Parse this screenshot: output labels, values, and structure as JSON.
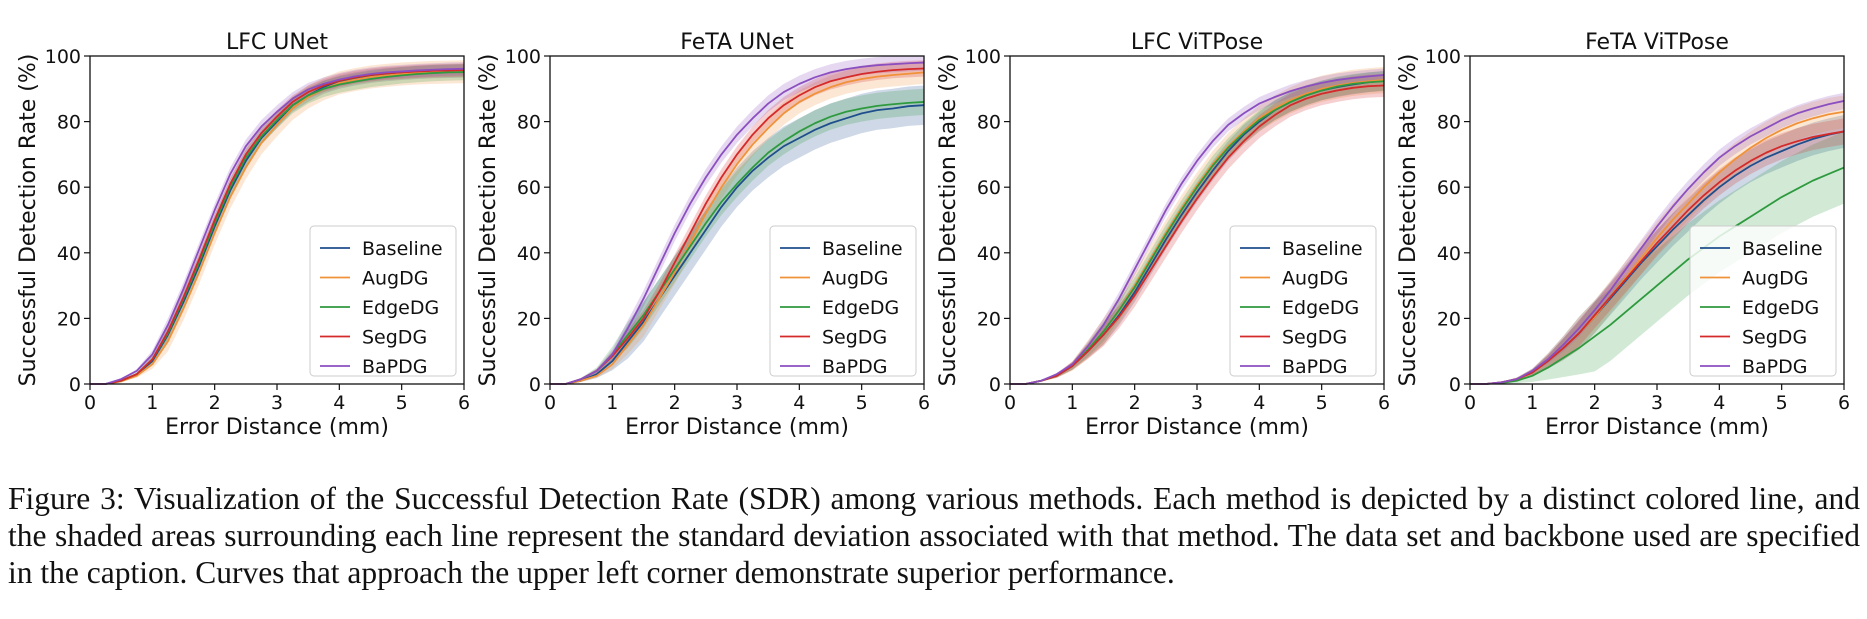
{
  "figure": {
    "caption": "Figure 3: Visualization of the Successful Detection Rate (SDR) among various methods. Each method is depicted by a distinct colored line, and the shaded areas surrounding each line represent the standard deviation associated with that method. The data set and backbone used are specified in the caption. Curves that approach the upper left corner demonstrate superior performance."
  },
  "legend": [
    "Baseline",
    "AugDG",
    "EdgeDG",
    "SegDG",
    "BaPDG"
  ],
  "colors": {
    "Baseline": "#1f4e8c",
    "AugDG": "#f0923a",
    "EdgeDG": "#2e9a3e",
    "SegDG": "#d42a2a",
    "BaPDG": "#8b4fc0"
  },
  "chart_data": [
    {
      "type": "line",
      "title": "LFC UNet",
      "xlabel": "Error Distance (mm)",
      "ylabel": "Successful Detection Rate (%)",
      "xlim": [
        0,
        6
      ],
      "ylim": [
        0,
        100
      ],
      "xticks": [
        0,
        1,
        2,
        3,
        4,
        5,
        6
      ],
      "yticks": [
        0,
        20,
        40,
        60,
        80,
        100
      ],
      "grid": false,
      "legend_position": "lower-right",
      "x": [
        0,
        0.25,
        0.5,
        0.75,
        1,
        1.25,
        1.5,
        1.75,
        2,
        2.25,
        2.5,
        2.75,
        3,
        3.25,
        3.5,
        3.75,
        4,
        4.25,
        4.5,
        4.75,
        5,
        5.25,
        5.5,
        5.75,
        6
      ],
      "series": [
        {
          "name": "Baseline",
          "values": [
            0,
            0,
            1,
            3,
            7,
            15,
            25,
            36,
            48,
            59,
            68,
            75,
            80,
            85,
            88,
            90.5,
            92,
            93,
            93.8,
            94.3,
            94.7,
            95,
            95.2,
            95.3,
            95.4
          ],
          "std": 2
        },
        {
          "name": "AugDG",
          "values": [
            0,
            0,
            0.8,
            2.5,
            6,
            13,
            23,
            34,
            46,
            57,
            66,
            73.5,
            79,
            84,
            87.5,
            90,
            91.8,
            92.8,
            93.6,
            94.1,
            94.5,
            94.8,
            95,
            95.1,
            95.2
          ],
          "std": 3.5
        },
        {
          "name": "EdgeDG",
          "values": [
            0,
            0,
            1,
            3,
            7.5,
            15.5,
            26,
            37,
            49,
            60,
            69,
            75.5,
            80.5,
            85,
            88,
            90,
            91.3,
            92.2,
            93,
            93.6,
            94.1,
            94.5,
            94.8,
            95,
            95.1
          ],
          "std": 2.5
        },
        {
          "name": "SegDG",
          "values": [
            0,
            0,
            1,
            3,
            7.5,
            16,
            26.5,
            38,
            50,
            61,
            70,
            76.5,
            81.5,
            86,
            89,
            91,
            92.5,
            93.5,
            94.2,
            94.7,
            95,
            95.3,
            95.5,
            95.6,
            95.7
          ],
          "std": 2
        },
        {
          "name": "BaPDG",
          "values": [
            0,
            0,
            1.5,
            4,
            9,
            18,
            29,
            41,
            53,
            64,
            72.5,
            78.5,
            83,
            87,
            89.8,
            91.5,
            92.8,
            93.8,
            94.5,
            95,
            95.3,
            95.6,
            95.8,
            96,
            96.1
          ],
          "std": 2
        }
      ]
    },
    {
      "type": "line",
      "title": "FeTA UNet",
      "xlabel": "Error Distance (mm)",
      "ylabel": "Successful Detection Rate (%)",
      "xlim": [
        0,
        6
      ],
      "ylim": [
        0,
        100
      ],
      "xticks": [
        0,
        1,
        2,
        3,
        4,
        5,
        6
      ],
      "yticks": [
        0,
        20,
        40,
        60,
        80,
        100
      ],
      "grid": false,
      "legend_position": "lower-right",
      "x": [
        0,
        0.25,
        0.5,
        0.75,
        1,
        1.25,
        1.5,
        1.75,
        2,
        2.25,
        2.5,
        2.75,
        3,
        3.25,
        3.5,
        3.75,
        4,
        4.25,
        4.5,
        4.75,
        5,
        5.25,
        5.5,
        5.75,
        6
      ],
      "series": [
        {
          "name": "Baseline",
          "values": [
            0,
            0,
            1,
            3,
            7,
            13,
            19,
            26,
            33,
            40,
            47,
            54,
            60,
            65,
            69,
            72.5,
            75,
            77.5,
            79.5,
            81,
            82.5,
            83.5,
            84,
            84.7,
            85
          ],
          "std": 6
        },
        {
          "name": "AugDG",
          "values": [
            0,
            0,
            1,
            2.5,
            6,
            12,
            18,
            26,
            34,
            43,
            52,
            60,
            67,
            73,
            78,
            82.5,
            86,
            88.5,
            90.5,
            92,
            93,
            93.7,
            94.2,
            94.6,
            95
          ],
          "std": 3.5
        },
        {
          "name": "EdgeDG",
          "values": [
            0,
            0,
            1.5,
            4,
            9,
            15,
            21,
            28,
            35,
            42,
            49,
            55.5,
            61,
            66,
            70.5,
            74,
            77,
            79.5,
            81.5,
            83,
            84,
            84.8,
            85.3,
            85.7,
            86
          ],
          "std": 4
        },
        {
          "name": "SegDG",
          "values": [
            0,
            0,
            1.5,
            4,
            8.5,
            14,
            20,
            28,
            37,
            46,
            55,
            63,
            70,
            76,
            81,
            85,
            88,
            90.5,
            92.3,
            93.5,
            94.5,
            95.2,
            95.7,
            96,
            96.2
          ],
          "std": 2.5
        },
        {
          "name": "BaPDG",
          "values": [
            0,
            0,
            1.5,
            4,
            9,
            17,
            26,
            36,
            46,
            55,
            63,
            70,
            76,
            81,
            85.5,
            89,
            91.5,
            93.5,
            95,
            96,
            96.7,
            97.2,
            97.5,
            97.8,
            98
          ],
          "std": 2.5
        }
      ]
    },
    {
      "type": "line",
      "title": "LFC ViTPose",
      "xlabel": "Error Distance (mm)",
      "ylabel": "Successful Detection Rate (%)",
      "xlim": [
        0,
        6
      ],
      "ylim": [
        0,
        100
      ],
      "xticks": [
        0,
        1,
        2,
        3,
        4,
        5,
        6
      ],
      "yticks": [
        0,
        20,
        40,
        60,
        80,
        100
      ],
      "grid": false,
      "legend_position": "lower-right",
      "x": [
        0,
        0.25,
        0.5,
        0.75,
        1,
        1.25,
        1.5,
        1.75,
        2,
        2.25,
        2.5,
        2.75,
        3,
        3.25,
        3.5,
        3.75,
        4,
        4.25,
        4.5,
        4.75,
        5,
        5.25,
        5.5,
        5.75,
        6
      ],
      "series": [
        {
          "name": "Baseline",
          "values": [
            0,
            0,
            1,
            2.5,
            5.5,
            10,
            15,
            21,
            28,
            36,
            44,
            51.5,
            58.5,
            65,
            71,
            76,
            80,
            83.5,
            86,
            88,
            89.5,
            90.5,
            91.3,
            92,
            92.5
          ],
          "std": 3
        },
        {
          "name": "AugDG",
          "values": [
            0,
            0,
            1,
            2.5,
            5.5,
            10.5,
            16,
            22.5,
            30,
            38,
            46,
            53.5,
            60.5,
            67,
            72.5,
            77,
            81,
            84,
            86.5,
            88.5,
            90,
            91,
            91.8,
            92.3,
            92.7
          ],
          "std": 4
        },
        {
          "name": "EdgeDG",
          "values": [
            0,
            0,
            1,
            2.5,
            5.5,
            10.5,
            16,
            22.5,
            29.5,
            37.5,
            45.5,
            53,
            60,
            66.5,
            72,
            76.5,
            80.5,
            83.5,
            86,
            88,
            89.5,
            90.7,
            91.5,
            92,
            92.3
          ],
          "std": 3
        },
        {
          "name": "SegDG",
          "values": [
            0,
            0,
            1,
            2.5,
            5.5,
            10,
            15,
            20.5,
            27,
            34.5,
            42,
            49.5,
            56.5,
            63,
            69,
            74,
            78.5,
            82,
            85,
            87,
            88.5,
            89.5,
            90.3,
            90.8,
            91
          ],
          "std": 3.5
        },
        {
          "name": "BaPDG",
          "values": [
            0,
            0,
            1,
            3,
            6,
            11.5,
            18,
            26,
            35,
            44,
            53,
            61,
            68,
            74,
            79,
            82.5,
            85.5,
            87.5,
            89.3,
            90.7,
            91.8,
            92.7,
            93.3,
            93.8,
            94.2
          ],
          "std": 2
        }
      ]
    },
    {
      "type": "line",
      "title": "FeTA ViTPose",
      "xlabel": "Error Distance (mm)",
      "ylabel": "Successful Detection Rate (%)",
      "xlim": [
        0,
        6
      ],
      "ylim": [
        0,
        100
      ],
      "xticks": [
        0,
        1,
        2,
        3,
        4,
        5,
        6
      ],
      "yticks": [
        0,
        20,
        40,
        60,
        80,
        100
      ],
      "grid": false,
      "legend_position": "lower-right",
      "x": [
        0,
        0.25,
        0.5,
        0.75,
        1,
        1.25,
        1.5,
        1.75,
        2,
        2.25,
        2.5,
        2.75,
        3,
        3.25,
        3.5,
        3.75,
        4,
        4.25,
        4.5,
        4.75,
        5,
        5.25,
        5.5,
        5.75,
        6
      ],
      "series": [
        {
          "name": "Baseline",
          "values": [
            0,
            0,
            0.5,
            1.5,
            3.5,
            7,
            11,
            15.5,
            20.5,
            26,
            31.5,
            37,
            42,
            47,
            51.5,
            56,
            60,
            63.5,
            66.5,
            69,
            71,
            73,
            74.7,
            76,
            77
          ],
          "std": 5
        },
        {
          "name": "AugDG",
          "values": [
            0,
            0,
            0.5,
            1.5,
            3.5,
            7,
            11,
            15.5,
            20.5,
            26.5,
            32.5,
            38.5,
            44.5,
            50,
            55,
            60,
            64.5,
            68.5,
            72,
            75,
            77.5,
            79.5,
            81,
            82.2,
            83
          ],
          "std": 5
        },
        {
          "name": "EdgeDG",
          "values": [
            0,
            0,
            0.3,
            1,
            2.5,
            5,
            8,
            11,
            14.5,
            18,
            22,
            26,
            30,
            34,
            38,
            41.5,
            45,
            48,
            51,
            54,
            57,
            59.5,
            62,
            64,
            66
          ],
          "std": 11
        },
        {
          "name": "SegDG",
          "values": [
            0,
            0,
            0.5,
            1.5,
            3.5,
            7,
            11,
            15.5,
            21,
            26.5,
            32,
            37.5,
            43,
            48,
            53,
            57.5,
            61.5,
            65,
            68,
            70.5,
            72.5,
            74,
            75.3,
            76.2,
            77
          ],
          "std": 4
        },
        {
          "name": "BaPDG",
          "values": [
            0,
            0,
            0.5,
            1.5,
            4,
            7.5,
            12,
            17,
            22.5,
            28.5,
            35,
            41.5,
            48,
            54,
            59.5,
            64.5,
            69,
            72.5,
            75.5,
            78,
            80.5,
            82.5,
            84,
            85.3,
            86.3
          ],
          "std": 2.5
        }
      ]
    }
  ]
}
